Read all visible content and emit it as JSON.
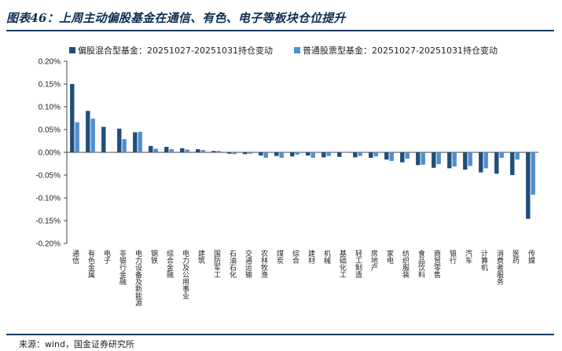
{
  "title": "图表46：上周主动偏股基金在通信、有色、电子等板块仓位提升",
  "source": "来源：wind，国金证券研究所",
  "chart_data": {
    "type": "bar",
    "categories": [
      "通信",
      "有色金属",
      "电子",
      "非银行金融",
      "电力设备及新能源",
      "钢铁",
      "综合金融",
      "电力及公用事业",
      "建筑",
      "国防军工",
      "石油石化",
      "交通运输",
      "农林牧渔",
      "煤炭",
      "综合",
      "建材",
      "机械",
      "基础化工",
      "轻工制造",
      "房地产",
      "家电",
      "纺织服装",
      "食品饮料",
      "商贸零售",
      "银行",
      "汽车",
      "计算机",
      "消费者服务",
      "医药",
      "传媒"
    ],
    "series": [
      {
        "name": "偏股混合型基金：20251027-20251031持仓变动",
        "color": "#1f4e79",
        "values": [
          0.15,
          0.091,
          0.056,
          0.052,
          0.044,
          0.014,
          0.012,
          0.009,
          0.007,
          0.003,
          -0.003,
          -0.004,
          -0.007,
          -0.008,
          -0.009,
          -0.007,
          -0.011,
          -0.01,
          -0.011,
          -0.012,
          -0.016,
          -0.022,
          -0.028,
          -0.034,
          -0.035,
          -0.038,
          -0.044,
          -0.047,
          -0.05,
          -0.146
        ]
      },
      {
        "name": "普通股票型基金：20251027-20251031持仓变动",
        "color": "#4f8fd0",
        "values": [
          0.066,
          0.074,
          0.001,
          0.029,
          0.045,
          0.008,
          0.007,
          0.006,
          0.005,
          0.003,
          -0.004,
          -0.003,
          -0.012,
          -0.012,
          -0.005,
          -0.012,
          -0.008,
          0.0,
          -0.008,
          -0.009,
          -0.019,
          -0.014,
          -0.027,
          -0.026,
          -0.031,
          -0.03,
          -0.035,
          -0.012,
          -0.016,
          -0.093
        ]
      }
    ],
    "ylim": [
      -0.2,
      0.2
    ],
    "yticks": [
      0.2,
      0.15,
      0.1,
      0.05,
      0.0,
      -0.05,
      -0.1,
      -0.15,
      -0.2
    ],
    "ytick_labels": [
      "0.20%",
      "0.15%",
      "0.10%",
      "0.05%",
      "0.00%",
      "-0.05%",
      "-0.10%",
      "-0.15%",
      "-0.20%"
    ],
    "legend_position": "top-center",
    "grid": false
  }
}
